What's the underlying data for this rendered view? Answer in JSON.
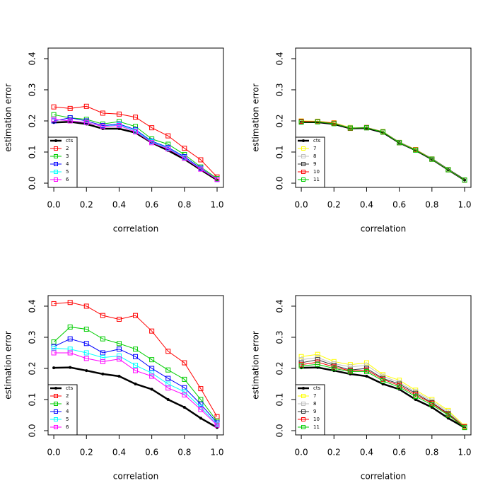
{
  "chart_data": [
    {
      "type": "line",
      "xlabel": "correlation",
      "ylabel": "estimation error",
      "x": [
        0,
        0.1,
        0.2,
        0.3,
        0.4,
        0.5,
        0.6,
        0.7,
        0.8,
        0.9,
        1.0
      ],
      "xlim": [
        -0.035,
        1.039
      ],
      "ylim": [
        -0.0136,
        0.434
      ],
      "xticks": [
        {
          "value": 0,
          "label": "0.0"
        },
        0.2,
        0.4,
        0.6,
        0.8,
        {
          "value": 1,
          "label": "1.0"
        }
      ],
      "yticks": [
        {
          "value": 0,
          "label": "0.0"
        },
        0.1,
        0.2,
        0.3,
        0.4
      ],
      "legend": "bottom-left",
      "series": [
        {
          "name": "cts",
          "color": "#000000",
          "marker": "dot",
          "values": [
            0.195,
            0.197,
            0.19,
            0.175,
            0.175,
            0.162,
            0.13,
            0.105,
            0.077,
            0.043,
            0.01
          ]
        },
        {
          "name": "2",
          "color": "#ff0000",
          "marker": "square",
          "values": [
            0.245,
            0.24,
            0.247,
            0.225,
            0.222,
            0.212,
            0.178,
            0.152,
            0.112,
            0.075,
            0.02
          ]
        },
        {
          "name": "3",
          "color": "#00cd00",
          "marker": "square",
          "values": [
            0.22,
            0.21,
            0.205,
            0.19,
            0.198,
            0.182,
            0.142,
            0.125,
            0.092,
            0.052,
            0.015
          ]
        },
        {
          "name": "4",
          "color": "#0000ff",
          "marker": "square",
          "values": [
            0.2,
            0.21,
            0.2,
            0.185,
            0.19,
            0.172,
            0.135,
            0.115,
            0.085,
            0.048,
            0.012
          ]
        },
        {
          "name": "5",
          "color": "#00ffff",
          "marker": "square",
          "values": [
            0.205,
            0.2,
            0.195,
            0.182,
            0.188,
            0.168,
            0.133,
            0.112,
            0.082,
            0.046,
            0.012
          ]
        },
        {
          "name": "6",
          "color": "#ff00ff",
          "marker": "square",
          "values": [
            0.205,
            0.2,
            0.195,
            0.182,
            0.185,
            0.165,
            0.13,
            0.11,
            0.08,
            0.045,
            0.012
          ]
        }
      ]
    },
    {
      "type": "line",
      "xlabel": "correlation",
      "ylabel": "estimation error",
      "x": [
        0,
        0.1,
        0.2,
        0.3,
        0.4,
        0.5,
        0.6,
        0.7,
        0.8,
        0.9,
        1.0
      ],
      "xlim": [
        -0.035,
        1.039
      ],
      "ylim": [
        -0.0136,
        0.434
      ],
      "xticks": [
        {
          "value": 0,
          "label": "0.0"
        },
        0.2,
        0.4,
        0.6,
        0.8,
        {
          "value": 1,
          "label": "1.0"
        }
      ],
      "yticks": [
        {
          "value": 0,
          "label": "0.0"
        },
        0.1,
        0.2,
        0.3,
        0.4
      ],
      "legend": "bottom-left",
      "series": [
        {
          "name": "cts",
          "color": "#000000",
          "marker": "dot",
          "values": [
            0.196,
            0.196,
            0.19,
            0.176,
            0.177,
            0.163,
            0.13,
            0.106,
            0.077,
            0.043,
            0.01
          ]
        },
        {
          "name": "7",
          "color": "#ffff00",
          "marker": "square",
          "values": [
            0.2,
            0.199,
            0.194,
            0.179,
            0.178,
            0.166,
            0.131,
            0.108,
            0.078,
            0.044,
            0.01
          ]
        },
        {
          "name": "8",
          "color": "#bebebe",
          "marker": "square",
          "values": [
            0.199,
            0.198,
            0.193,
            0.178,
            0.178,
            0.165,
            0.131,
            0.107,
            0.078,
            0.044,
            0.01
          ]
        },
        {
          "name": "9",
          "color": "#333333",
          "marker": "square",
          "values": [
            0.198,
            0.198,
            0.192,
            0.177,
            0.178,
            0.165,
            0.13,
            0.107,
            0.077,
            0.043,
            0.01
          ]
        },
        {
          "name": "10",
          "color": "#ff0000",
          "marker": "square",
          "values": [
            0.199,
            0.198,
            0.193,
            0.176,
            0.179,
            0.164,
            0.13,
            0.107,
            0.077,
            0.043,
            0.01
          ]
        },
        {
          "name": "11",
          "color": "#00cd00",
          "marker": "square",
          "values": [
            0.196,
            0.197,
            0.191,
            0.177,
            0.178,
            0.164,
            0.13,
            0.106,
            0.077,
            0.043,
            0.01
          ]
        }
      ]
    },
    {
      "type": "line",
      "xlabel": "correlation",
      "ylabel": "estimation error",
      "x": [
        0,
        0.1,
        0.2,
        0.3,
        0.4,
        0.5,
        0.6,
        0.7,
        0.8,
        0.9,
        1.0
      ],
      "xlim": [
        -0.035,
        1.039
      ],
      "ylim": [
        -0.0136,
        0.434
      ],
      "xticks": [
        {
          "value": 0,
          "label": "0.0"
        },
        0.2,
        0.4,
        0.6,
        0.8,
        {
          "value": 1,
          "label": "1.0"
        }
      ],
      "yticks": [
        {
          "value": 0,
          "label": "0.0"
        },
        0.1,
        0.2,
        0.3,
        0.4
      ],
      "legend": "bottom-left",
      "series": [
        {
          "name": "cts",
          "color": "#000000",
          "marker": "dot",
          "values": [
            0.202,
            0.203,
            0.193,
            0.182,
            0.175,
            0.15,
            0.133,
            0.1,
            0.075,
            0.04,
            0.01
          ]
        },
        {
          "name": "2",
          "color": "#ff0000",
          "marker": "square",
          "values": [
            0.408,
            0.412,
            0.4,
            0.37,
            0.358,
            0.37,
            0.32,
            0.255,
            0.218,
            0.135,
            0.045
          ]
        },
        {
          "name": "3",
          "color": "#00cd00",
          "marker": "square",
          "values": [
            0.285,
            0.333,
            0.326,
            0.295,
            0.28,
            0.262,
            0.228,
            0.195,
            0.165,
            0.1,
            0.03
          ]
        },
        {
          "name": "4",
          "color": "#0000ff",
          "marker": "square",
          "values": [
            0.27,
            0.295,
            0.28,
            0.25,
            0.262,
            0.238,
            0.2,
            0.168,
            0.138,
            0.085,
            0.025
          ]
        },
        {
          "name": "5",
          "color": "#00ffff",
          "marker": "square",
          "values": [
            0.265,
            0.262,
            0.25,
            0.235,
            0.24,
            0.21,
            0.185,
            0.15,
            0.125,
            0.075,
            0.02
          ]
        },
        {
          "name": "6",
          "color": "#ff00ff",
          "marker": "square",
          "values": [
            0.25,
            0.25,
            0.232,
            0.222,
            0.23,
            0.193,
            0.175,
            0.137,
            0.115,
            0.068,
            0.018
          ]
        }
      ]
    },
    {
      "type": "line",
      "xlabel": "correlation",
      "ylabel": "estimation error",
      "x": [
        0,
        0.1,
        0.2,
        0.3,
        0.4,
        0.5,
        0.6,
        0.7,
        0.8,
        0.9,
        1.0
      ],
      "xlim": [
        -0.035,
        1.039
      ],
      "ylim": [
        -0.0136,
        0.434
      ],
      "xticks": [
        {
          "value": 0,
          "label": "0.0"
        },
        0.2,
        0.4,
        0.6,
        0.8,
        {
          "value": 1,
          "label": "1.0"
        }
      ],
      "yticks": [
        {
          "value": 0,
          "label": "0.0"
        },
        0.1,
        0.2,
        0.3,
        0.4
      ],
      "legend": "bottom-left",
      "series": [
        {
          "name": "cts",
          "color": "#000000",
          "marker": "dot",
          "values": [
            0.202,
            0.203,
            0.193,
            0.182,
            0.175,
            0.15,
            0.133,
            0.1,
            0.075,
            0.04,
            0.01
          ]
        },
        {
          "name": "7",
          "color": "#ffff00",
          "marker": "square",
          "values": [
            0.238,
            0.245,
            0.222,
            0.212,
            0.218,
            0.18,
            0.162,
            0.13,
            0.1,
            0.065,
            0.015
          ]
        },
        {
          "name": "8",
          "color": "#bebebe",
          "marker": "square",
          "values": [
            0.228,
            0.235,
            0.215,
            0.205,
            0.21,
            0.175,
            0.155,
            0.125,
            0.095,
            0.06,
            0.013
          ]
        },
        {
          "name": "9",
          "color": "#333333",
          "marker": "square",
          "values": [
            0.218,
            0.228,
            0.21,
            0.195,
            0.2,
            0.168,
            0.15,
            0.12,
            0.09,
            0.055,
            0.012
          ]
        },
        {
          "name": "10",
          "color": "#ff0000",
          "marker": "square",
          "values": [
            0.212,
            0.22,
            0.205,
            0.192,
            0.195,
            0.165,
            0.145,
            0.115,
            0.088,
            0.052,
            0.012
          ]
        },
        {
          "name": "11",
          "color": "#00cd00",
          "marker": "square",
          "values": [
            0.208,
            0.213,
            0.2,
            0.19,
            0.19,
            0.16,
            0.14,
            0.11,
            0.083,
            0.05,
            0.01
          ]
        }
      ]
    }
  ]
}
